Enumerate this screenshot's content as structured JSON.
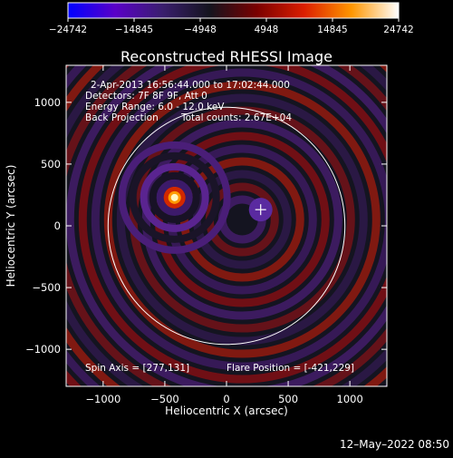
{
  "chart_data": {
    "type": "heatmap",
    "title": "Reconstructed RHESSI Image",
    "xlabel": "Heliocentric X (arcsec)",
    "ylabel": "Heliocentric Y (arcsec)",
    "xlim": [
      -1300,
      1300
    ],
    "ylim": [
      -1300,
      1300
    ],
    "xticks": [
      -1000,
      -500,
      0,
      500,
      1000
    ],
    "yticks": [
      -1000,
      -500,
      0,
      500,
      1000
    ],
    "xtick_labels": [
      "−1000",
      "−500",
      "0",
      "500",
      "1000"
    ],
    "ytick_labels": [
      "−1000",
      "−500",
      "0",
      "500",
      "1000"
    ],
    "colorbar": {
      "range": [
        -24742,
        24742
      ],
      "ticks": [
        -24742,
        -14845,
        -4948,
        4948,
        14845,
        24742
      ],
      "tick_labels": [
        "−24742",
        "−14845",
        "−4948",
        "4948",
        "14845",
        "24742"
      ],
      "colormap": [
        "#0000ff",
        "#5a00c8",
        "#3a1e6e",
        "#14141e",
        "#7a0000",
        "#dc1e00",
        "#ff9600",
        "#ffffff"
      ]
    },
    "annotations": {
      "time_range": "2-Apr-2013 16:56:44.000 to 17:02:44.000",
      "detectors": "Detectors: 7F 8F 9F, Att 0",
      "energy_range": "Energy Range: 6.0 - 12.0 keV",
      "method": "Back Projection",
      "total_counts": "Total counts: 2.67E+04",
      "spin_axis": "Spin Axis = [277,131]",
      "flare_position": "Flare Position = [-421,229]"
    },
    "bright_source": {
      "x": -421,
      "y": 229
    },
    "spin_axis_marker": {
      "x": 277,
      "y": 131
    },
    "solar_limb_radius_arcsec": 960
  },
  "footer": {
    "timestamp": "12–May–2022 08:50"
  }
}
